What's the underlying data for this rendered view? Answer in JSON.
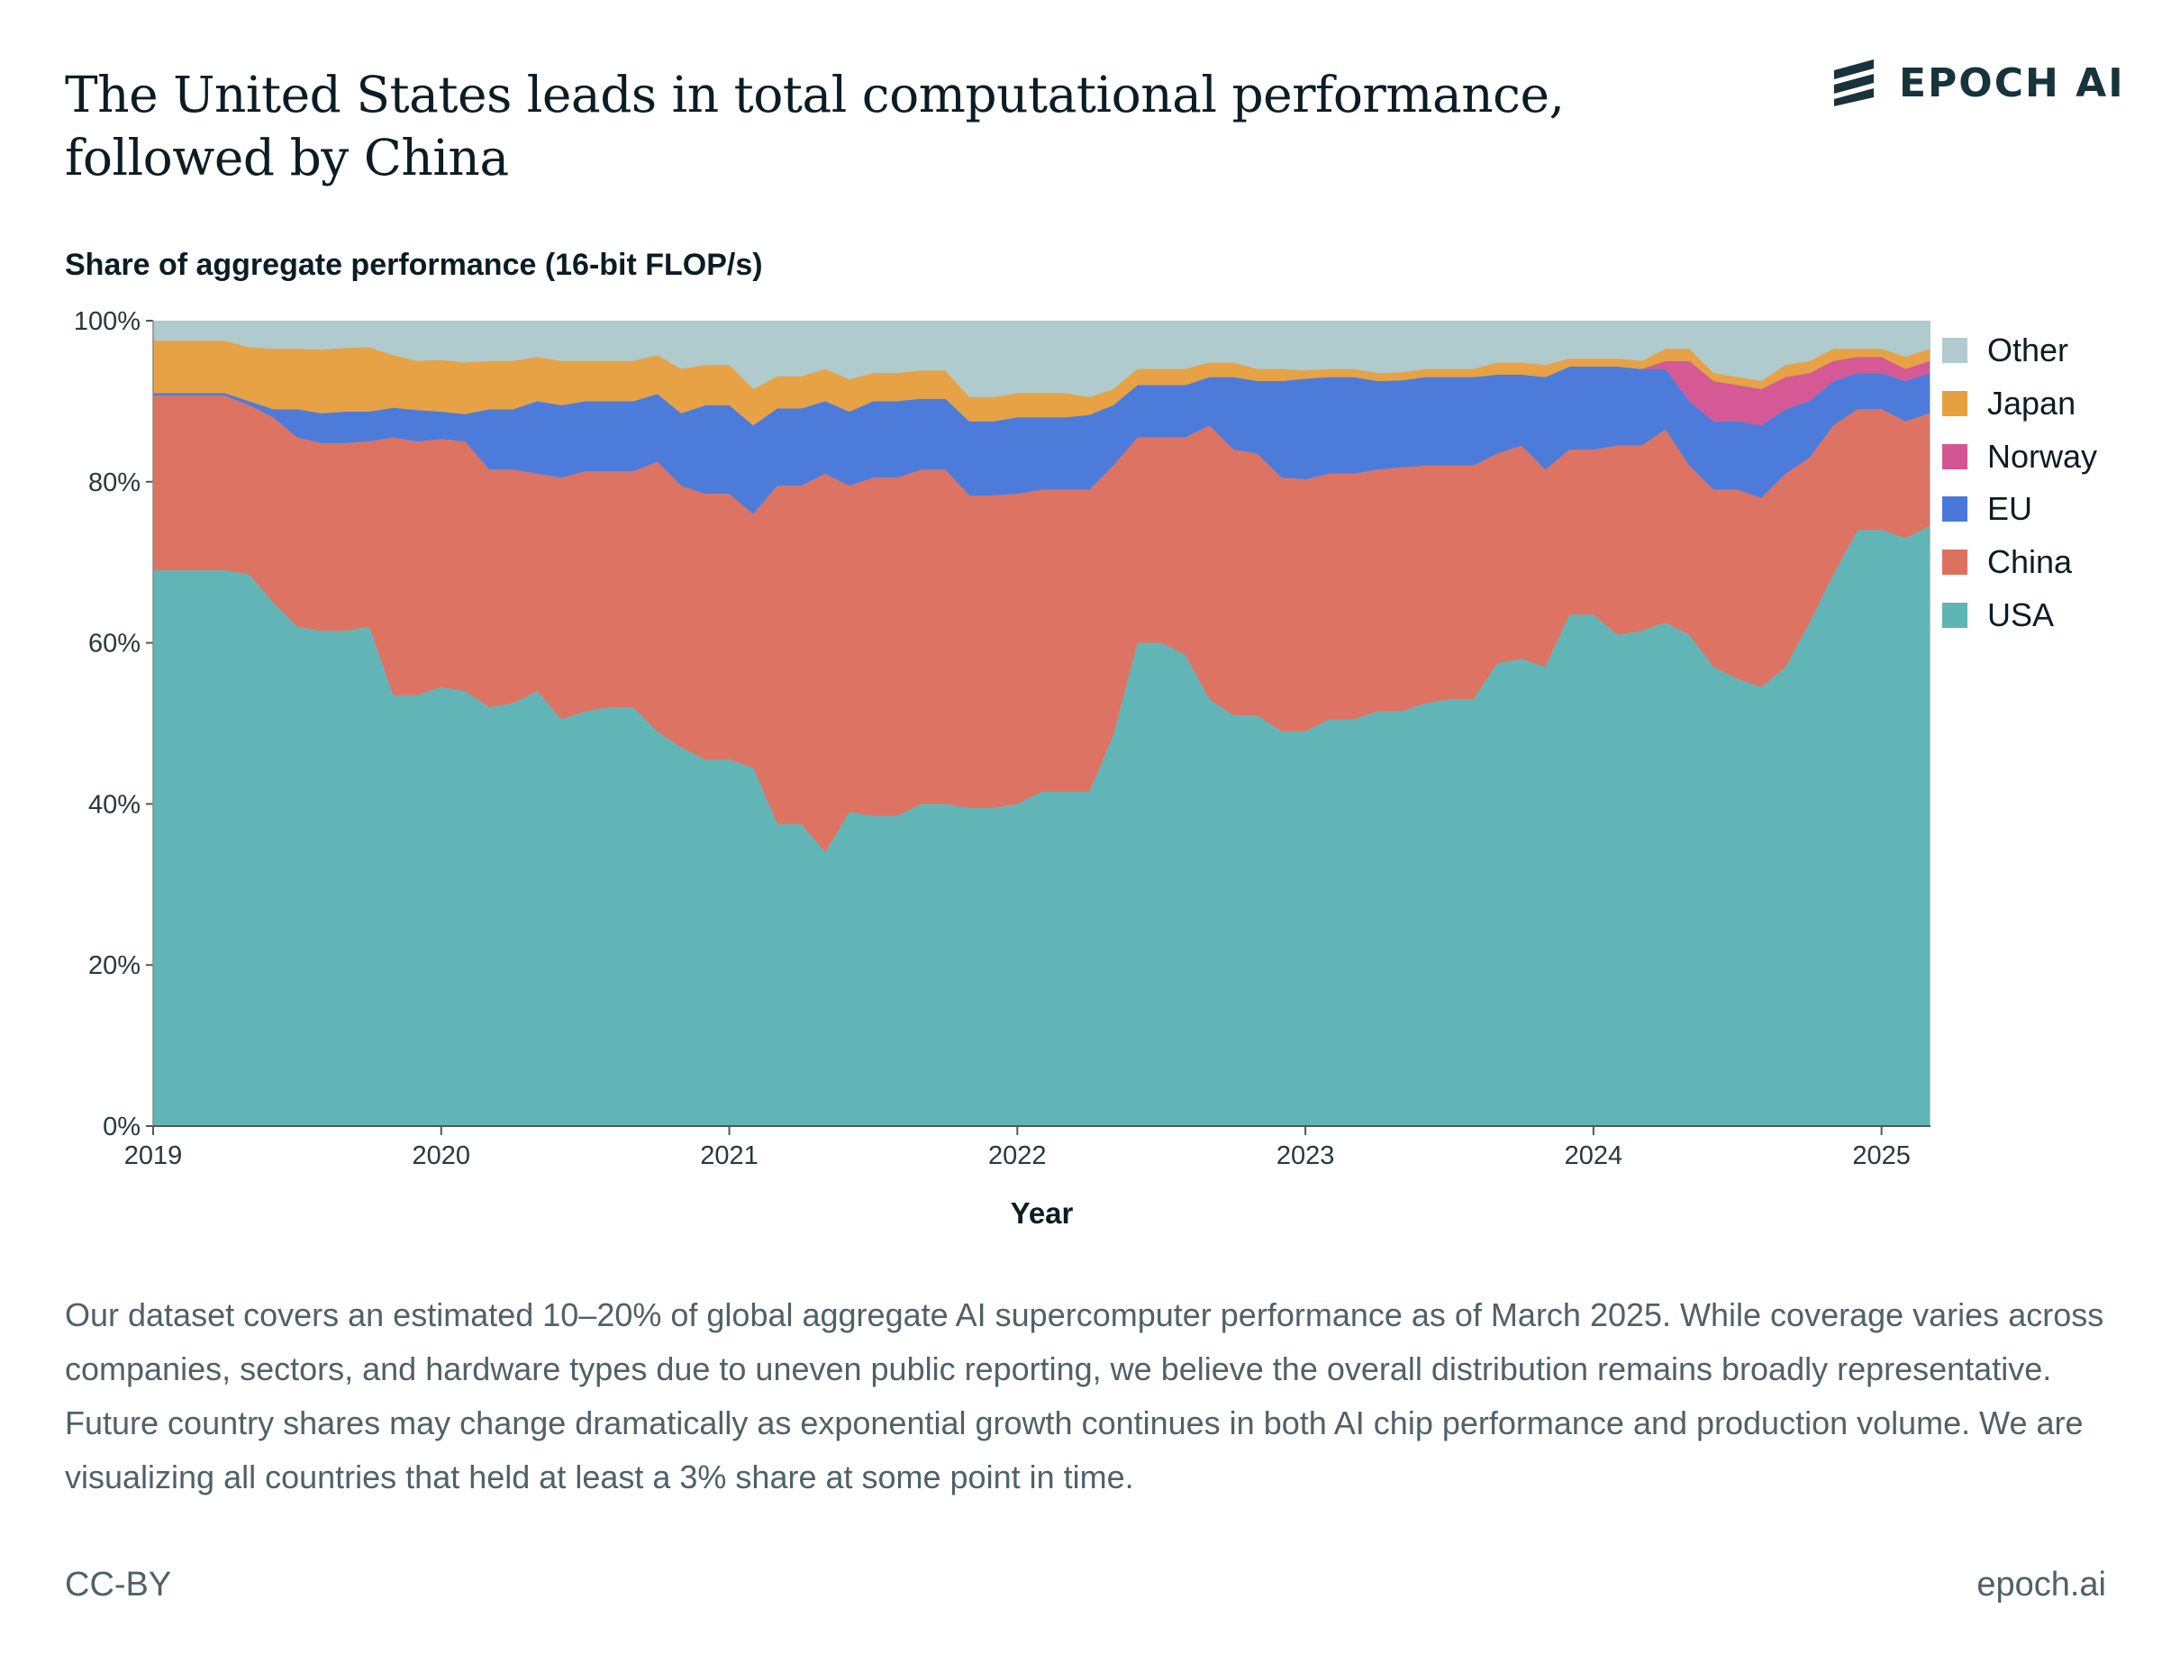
{
  "header": {
    "title": "The United States leads in total computational performance, followed by China",
    "logo_text": "EPOCH AI",
    "logo_icon": "epoch-stripes-icon"
  },
  "chart_data": {
    "type": "area",
    "stacked": true,
    "ylabel": "Share of aggregate performance (16-bit FLOP/s)",
    "xlabel": "Year",
    "ylim": [
      0,
      100
    ],
    "y_ticks": [
      "0%",
      "20%",
      "40%",
      "60%",
      "80%",
      "100%"
    ],
    "x_ticks": [
      "2019",
      "2020",
      "2021",
      "2022",
      "2023",
      "2024",
      "2025"
    ],
    "x_range": [
      2019.0,
      2025.17
    ],
    "legend_position": "right",
    "x": [
      2019.0,
      2019.083,
      2019.167,
      2019.25,
      2019.333,
      2019.417,
      2019.5,
      2019.583,
      2019.667,
      2019.75,
      2019.833,
      2019.917,
      2020.0,
      2020.083,
      2020.167,
      2020.25,
      2020.333,
      2020.417,
      2020.5,
      2020.583,
      2020.667,
      2020.75,
      2020.833,
      2020.917,
      2021.0,
      2021.083,
      2021.167,
      2021.25,
      2021.333,
      2021.417,
      2021.5,
      2021.583,
      2021.667,
      2021.75,
      2021.833,
      2021.917,
      2022.0,
      2022.083,
      2022.167,
      2022.25,
      2022.333,
      2022.417,
      2022.5,
      2022.583,
      2022.667,
      2022.75,
      2022.833,
      2022.917,
      2023.0,
      2023.083,
      2023.167,
      2023.25,
      2023.333,
      2023.417,
      2023.5,
      2023.583,
      2023.667,
      2023.75,
      2023.833,
      2023.917,
      2024.0,
      2024.083,
      2024.167,
      2024.25,
      2024.333,
      2024.417,
      2024.5,
      2024.583,
      2024.667,
      2024.75,
      2024.833,
      2024.917,
      2025.0,
      2025.083,
      2025.167
    ],
    "series": [
      {
        "name": "USA",
        "color": "#5fb4b6",
        "values": [
          69,
          69,
          69,
          69,
          68.5,
          65,
          62,
          61.5,
          61.5,
          62,
          53.5,
          53.5,
          54.5,
          54,
          52,
          52.5,
          54,
          50.5,
          51.5,
          52,
          52,
          49,
          47,
          45.5,
          45.5,
          44.5,
          37.5,
          37.5,
          34,
          39,
          38.5,
          38.5,
          40,
          40,
          39.5,
          39.5,
          40,
          41.5,
          41.5,
          41.5,
          48.5,
          60,
          60,
          58.5,
          53,
          51,
          51,
          49,
          49,
          50.5,
          50.5,
          51.5,
          51.5,
          52.5,
          53,
          53,
          57.5,
          58,
          57,
          63.5,
          63.5,
          61,
          61.5,
          62.5,
          61,
          57,
          55.5,
          54.5,
          57,
          62.5,
          68.5,
          74,
          74,
          73,
          74.5
        ]
      },
      {
        "name": "China",
        "color": "#de705f",
        "values": [
          21.7,
          21.7,
          21.7,
          21.7,
          21,
          23,
          23.5,
          23.3,
          23.3,
          23,
          32,
          31.5,
          30.8,
          31,
          29.5,
          29,
          27,
          30,
          29.8,
          29.3,
          29.3,
          33.5,
          32.5,
          33,
          33,
          31.5,
          42,
          42,
          47,
          40.5,
          42,
          42,
          41.5,
          41.5,
          38.8,
          38.8,
          38.5,
          37.5,
          37.5,
          37.5,
          33.5,
          25.5,
          25.5,
          27,
          34,
          33,
          32.5,
          31.5,
          31.3,
          30.5,
          30.5,
          30,
          30.3,
          29.5,
          29,
          29,
          26,
          26.5,
          24.5,
          20.5,
          20.5,
          23.5,
          23,
          24,
          21,
          22,
          23.5,
          23.5,
          24,
          20.5,
          18.5,
          15,
          15,
          14.5,
          14
        ]
      },
      {
        "name": "EU",
        "color": "#4978da",
        "values": [
          0.3,
          0.3,
          0.3,
          0.3,
          0.5,
          1,
          3.5,
          3.7,
          3.9,
          3.7,
          3.7,
          3.9,
          3.4,
          3.4,
          7.5,
          7.5,
          9,
          9,
          8.7,
          8.7,
          8.7,
          8.4,
          9,
          11,
          11,
          11,
          9.6,
          9.6,
          9,
          9.2,
          9.5,
          9.5,
          8.8,
          8.8,
          9.2,
          9.2,
          9.5,
          9,
          9,
          9.3,
          7.5,
          6.5,
          6.5,
          6.5,
          6,
          9,
          9,
          12,
          12.5,
          12,
          12,
          11,
          10.8,
          11,
          11,
          11,
          9.8,
          8.8,
          11.5,
          10.3,
          10.3,
          9.8,
          9.5,
          7.5,
          8,
          8.5,
          8.5,
          9,
          8,
          7,
          5.5,
          4.5,
          4.5,
          5,
          5
        ]
      },
      {
        "name": "Norway",
        "color": "#d55592",
        "values": [
          0,
          0,
          0,
          0,
          0,
          0,
          0,
          0,
          0,
          0,
          0,
          0,
          0,
          0,
          0,
          0,
          0,
          0,
          0,
          0,
          0,
          0,
          0,
          0,
          0,
          0,
          0,
          0,
          0,
          0,
          0,
          0,
          0,
          0,
          0,
          0,
          0,
          0,
          0,
          0,
          0,
          0,
          0,
          0,
          0,
          0,
          0,
          0,
          0,
          0,
          0,
          0,
          0,
          0,
          0,
          0,
          0,
          0,
          0,
          0,
          0,
          0,
          0,
          1,
          5,
          5,
          4.5,
          4.5,
          4,
          3.5,
          2.5,
          2,
          2,
          1.5,
          1.5
        ]
      },
      {
        "name": "Japan",
        "color": "#e7a040",
        "values": [
          6.5,
          6.5,
          6.5,
          6.5,
          6.7,
          7.5,
          7.5,
          7.9,
          7.9,
          8,
          6.5,
          6.1,
          6.4,
          6.4,
          6,
          6,
          5.5,
          5.5,
          5,
          5,
          5,
          4.8,
          5.5,
          5,
          5,
          4.5,
          4,
          4,
          4,
          4,
          3.5,
          3.5,
          3.5,
          3.5,
          3,
          3,
          3,
          3,
          3,
          2.2,
          2,
          2,
          2,
          2,
          1.8,
          1.8,
          1.5,
          1.5,
          1,
          1,
          1,
          1,
          1,
          1,
          1,
          1,
          1.5,
          1.5,
          1.5,
          1,
          1,
          1,
          1,
          1.5,
          1.5,
          1,
          1,
          1,
          1.5,
          1.5,
          1.5,
          1,
          1,
          1.5,
          1.5
        ]
      }
    ],
    "other_note": "Other fills the remainder up to 100%",
    "legend": [
      {
        "name": "Other",
        "color": "#b0cbcd"
      },
      {
        "name": "Japan",
        "color": "#e7a040"
      },
      {
        "name": "Norway",
        "color": "#d55592"
      },
      {
        "name": "EU",
        "color": "#4978da"
      },
      {
        "name": "China",
        "color": "#de705f"
      },
      {
        "name": "USA",
        "color": "#5fb4b6"
      }
    ]
  },
  "caption": "Our dataset covers an estimated 10–20% of global aggregate AI supercomputer performance as of March 2025. While coverage varies across companies, sectors, and hardware types due to uneven public reporting, we believe the overall distribution remains broadly representative. Future country shares may change dramatically as exponential growth continues in both AI chip performance and production volume. We are visualizing all countries that held at least a 3% share at some point in time.",
  "footer": {
    "license": "CC-BY",
    "site": "epoch.ai"
  }
}
